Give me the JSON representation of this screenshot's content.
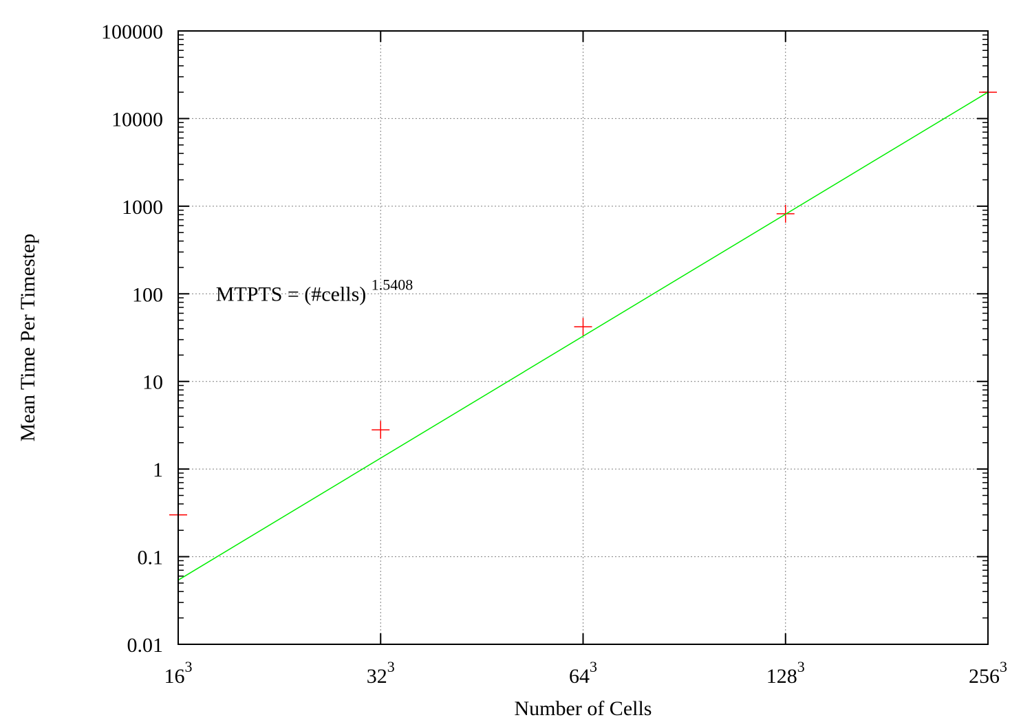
{
  "chart_data": {
    "type": "scatter",
    "xlabel": "Number of Cells",
    "ylabel": "Mean Time Per Timestep",
    "x_scale": "log",
    "y_scale": "log",
    "xlim": [
      16,
      256
    ],
    "ylim": [
      0.01,
      100000
    ],
    "grid": true,
    "x_ticks": [
      {
        "value": 16,
        "base": "16",
        "exp": "3"
      },
      {
        "value": 32,
        "base": "32",
        "exp": "3"
      },
      {
        "value": 64,
        "base": "64",
        "exp": "3"
      },
      {
        "value": 128,
        "base": "128",
        "exp": "3"
      },
      {
        "value": 256,
        "base": "256",
        "exp": "3"
      }
    ],
    "y_ticks": [
      {
        "value": 0.01,
        "label": "0.01"
      },
      {
        "value": 0.1,
        "label": "0.1"
      },
      {
        "value": 1,
        "label": "1"
      },
      {
        "value": 10,
        "label": "10"
      },
      {
        "value": 100,
        "label": "100"
      },
      {
        "value": 1000,
        "label": "1000"
      },
      {
        "value": 10000,
        "label": "10000"
      },
      {
        "value": 100000,
        "label": "100000"
      }
    ],
    "series": [
      {
        "marker": "plus",
        "color": "#ff0000",
        "points": [
          {
            "x": 16,
            "y": 0.3
          },
          {
            "x": 32,
            "y": 2.8
          },
          {
            "x": 64,
            "y": 42
          },
          {
            "x": 128,
            "y": 820
          },
          {
            "x": 256,
            "y": 20000
          }
        ]
      },
      {
        "marker": "line",
        "color": "#00ee00",
        "points": [
          {
            "x": 16,
            "y": 0.054
          },
          {
            "x": 256,
            "y": 20000
          }
        ]
      }
    ],
    "annotation": {
      "base": "MTPTS = (#cells)",
      "exponent": "1.5408",
      "x": 18.2,
      "y": 100
    }
  }
}
